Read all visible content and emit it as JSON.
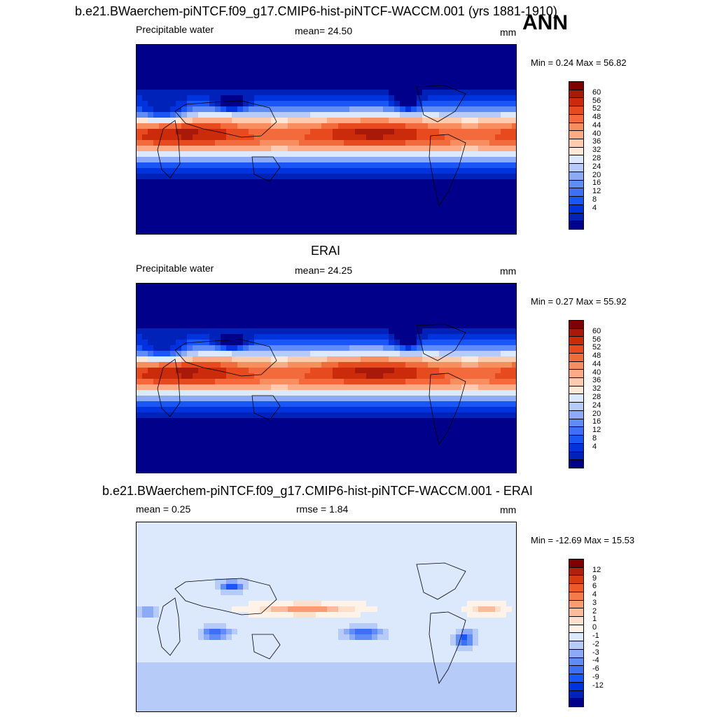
{
  "header": {
    "case_title": "b.e21.BWaerchem-piNTCF.f09_g17.CMIP6-hist-piNTCF-WACCM.001 (yrs 1881-1910)",
    "season": "ANN"
  },
  "colors": {
    "pw_scale": [
      "#00008b",
      "#0022b8",
      "#0033dd",
      "#1a56f5",
      "#3d70f5",
      "#608df5",
      "#8daaf7",
      "#b6cbf8",
      "#dce8fb",
      "#fde8d8",
      "#fdcbb0",
      "#fcab86",
      "#f88d60",
      "#f36b3d",
      "#e84a1f",
      "#cc2b0b",
      "#a8190a",
      "#7f0000"
    ],
    "diff_scale": [
      "#00008b",
      "#0022b8",
      "#0033dd",
      "#1a56f5",
      "#3d70f5",
      "#608df5",
      "#8daaf7",
      "#b6cbf8",
      "#dce8fb",
      "#fff2e8",
      "#fde0cc",
      "#fcbb9a",
      "#f99c70",
      "#f67b4b",
      "#ee5a2a",
      "#d83a13",
      "#b0200b",
      "#7f0000"
    ]
  },
  "chart_data": [
    {
      "type": "heatmap",
      "title": "",
      "variable_label": "Precipitable water",
      "mean_label": "mean=  24.50",
      "unit": "mm",
      "min_max": "Min =   0.24 Max =  56.82",
      "min": 0.24,
      "max": 56.82,
      "mean": 24.5,
      "colorbar_ticks": [
        "60",
        "56",
        "52",
        "48",
        "44",
        "40",
        "36",
        "32",
        "28",
        "24",
        "20",
        "16",
        "12",
        "8",
        "4"
      ]
    },
    {
      "type": "heatmap",
      "title": "ERAI",
      "variable_label": "Precipitable water",
      "mean_label": "mean=  24.25",
      "unit": "mm",
      "min_max": "Min =   0.27 Max =  55.92",
      "min": 0.27,
      "max": 55.92,
      "mean": 24.25,
      "colorbar_ticks": [
        "60",
        "56",
        "52",
        "48",
        "44",
        "40",
        "36",
        "32",
        "28",
        "24",
        "20",
        "16",
        "12",
        "8",
        "4"
      ]
    },
    {
      "type": "heatmap",
      "title": "b.e21.BWaerchem-piNTCF.f09_g17.CMIP6-hist-piNTCF-WACCM.001 - ERAI",
      "mean_label": "mean =   0.25",
      "rmse_label": "rmse =   1.84",
      "unit": "mm",
      "min_max": "Min = -12.69 Max =  15.53",
      "min": -12.69,
      "max": 15.53,
      "mean": 0.25,
      "rmse": 1.84,
      "colorbar_ticks": [
        "12",
        "9",
        "6",
        "4",
        "3",
        "2",
        "1",
        "0",
        "-1",
        "-2",
        "-3",
        "-4",
        "-6",
        "-9",
        "-12"
      ]
    }
  ]
}
